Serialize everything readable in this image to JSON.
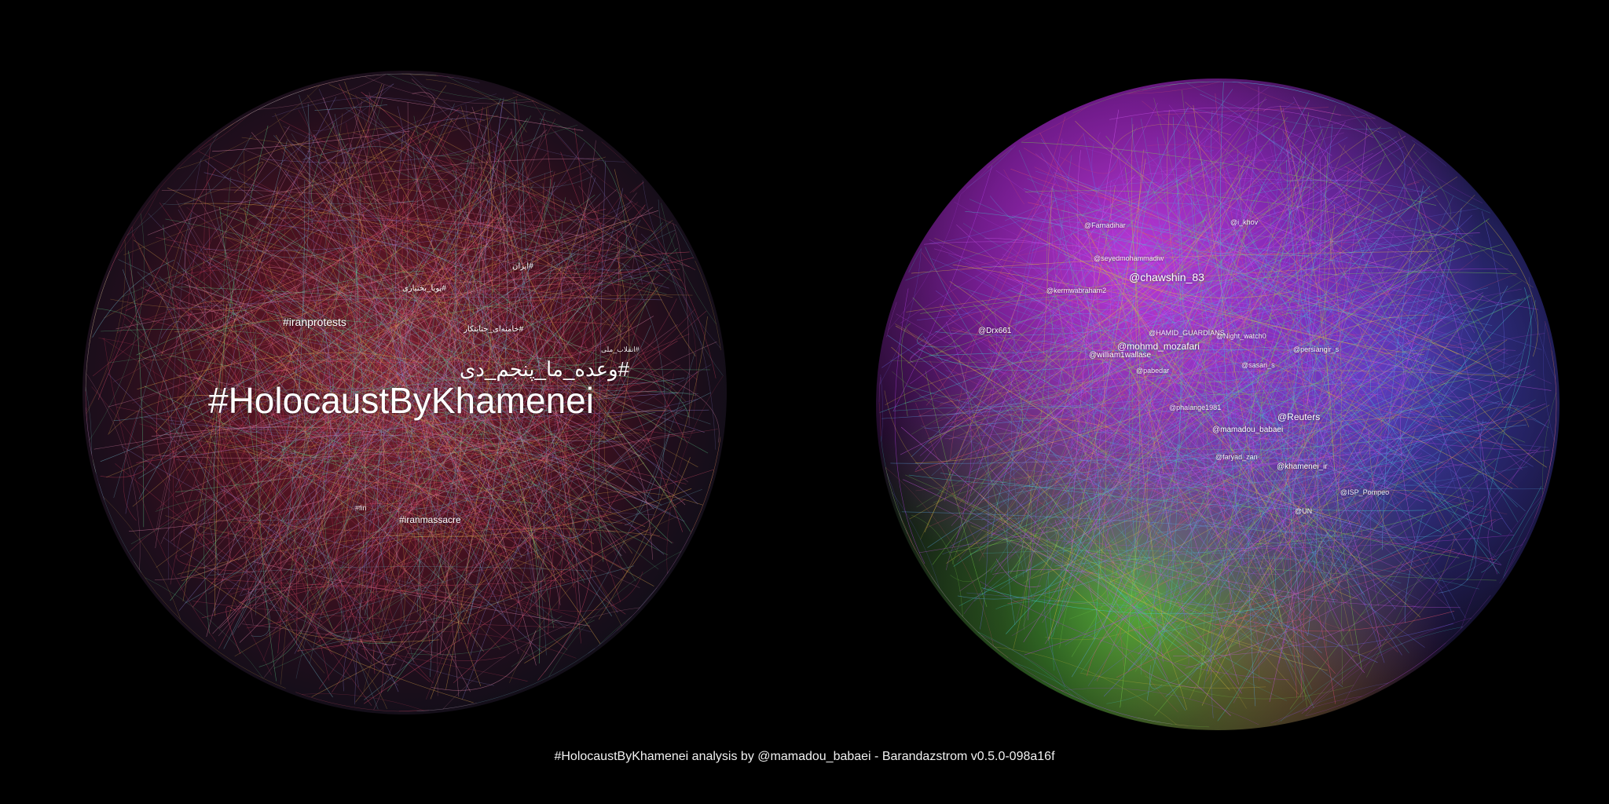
{
  "left_network": {
    "labels": [
      "#HolocaustByKhamenei",
      "#وعده_ما_پنجم_دی",
      "#iranprotests",
      "#iranmassacre",
      "#ایران",
      "#پویا_بختیاری",
      "#خامنه‌ای_جنایتکار",
      "#انقلاب_ملی",
      "#fin"
    ]
  },
  "right_network": {
    "labels": [
      "@chawshin_83",
      "@mohmd_mozafari",
      "@william1wallase",
      "@Reuters",
      "@mamadou_babaei",
      "@khamenei_ir",
      "@faryad_zan",
      "@Drx661",
      "@Night_watch0",
      "@sasari_s",
      "@persiangir_s",
      "@UN",
      "@Farnadihar",
      "@seyedmohammadiw",
      "@i_khov",
      "@kermwabraham2",
      "@phalange1981",
      "@pabedar",
      "@ISP_Pompeo",
      "@HAMID_GUARDIANS"
    ]
  },
  "footer": {
    "caption": "#HolocaustByKhamenei analysis by @mamadou_babaei - Barandazstrom v0.5.0-098a16f"
  },
  "colors": {
    "background": "#000000",
    "left_core": "#dc3c5a",
    "right_purple": "#d23cf0",
    "right_blue": "#5050e6",
    "right_green": "#5adc3c"
  }
}
